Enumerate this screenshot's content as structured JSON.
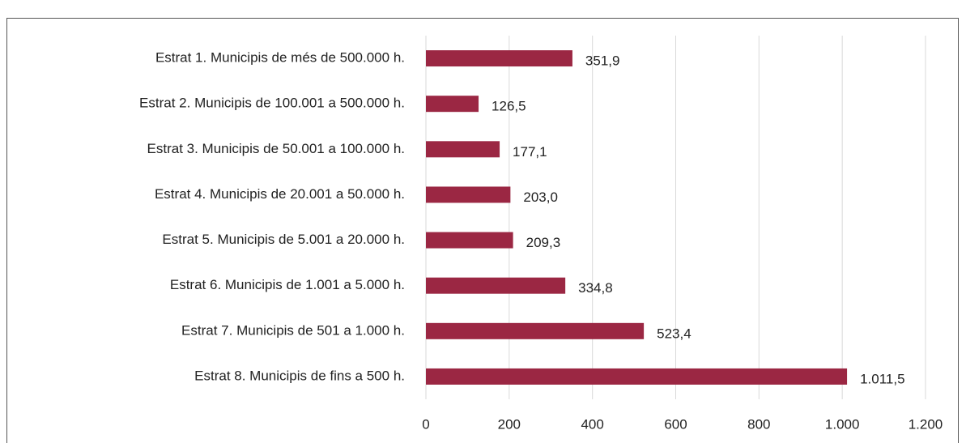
{
  "chart_data": {
    "type": "bar",
    "orientation": "horizontal",
    "categories": [
      "Estrat 1. Municipis de més de 500.000 h.",
      "Estrat 2. Municipis de 100.001 a 500.000 h.",
      "Estrat 3. Municipis de 50.001 a 100.000 h.",
      "Estrat 4. Municipis de 20.001 a 50.000 h.",
      "Estrat 5. Municipis de 5.001 a 20.000 h.",
      "Estrat 6. Municipis de 1.001 a 5.000 h.",
      "Estrat 7. Municipis de 501 a 1.000 h.",
      "Estrat 8. Municipis de fins a 500 h."
    ],
    "values": [
      351.9,
      126.5,
      177.1,
      203.0,
      209.3,
      334.8,
      523.4,
      1011.5
    ],
    "value_labels": [
      "351,9",
      "126,5",
      "177,1",
      "203,0",
      "209,3",
      "334,8",
      "523,4",
      "1.011,5"
    ],
    "color": "#9b2743",
    "xlim": [
      0,
      1200
    ],
    "xticks": [
      0,
      200,
      400,
      600,
      800,
      {
        "value": 1000,
        "label": "1.000"
      },
      {
        "value": 1200,
        "label": "1.200"
      }
    ],
    "grid": true
  }
}
